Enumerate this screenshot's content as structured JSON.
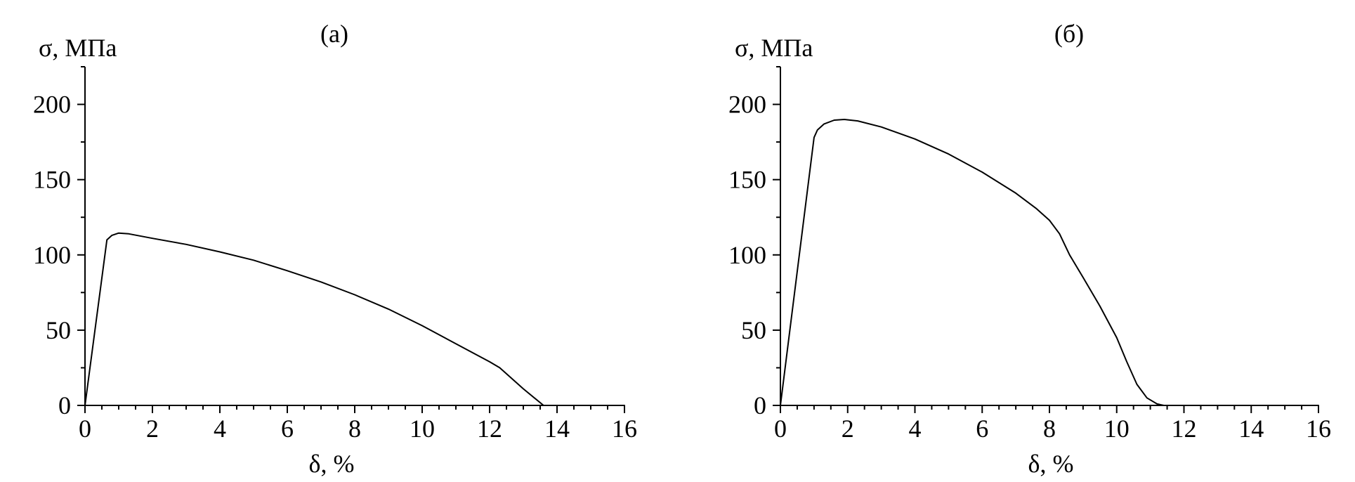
{
  "chart_data": [
    {
      "type": "line",
      "panel_label": "(a)",
      "xlabel": "δ, %",
      "ylabel": "σ, МПа",
      "xlim": [
        0,
        16
      ],
      "ylim": [
        0,
        225
      ],
      "xticks": [
        0,
        2,
        4,
        6,
        8,
        10,
        12,
        14,
        16
      ],
      "yticks": [
        0,
        50,
        100,
        150,
        200
      ],
      "grid": false,
      "series": [
        {
          "x": [
            0,
            0.65,
            0.8,
            1.0,
            1.3,
            2,
            3,
            4,
            5,
            6,
            7,
            8,
            9,
            10,
            11,
            12,
            12.3,
            13,
            13.6
          ],
          "y": [
            0,
            110,
            113,
            114.5,
            114,
            111,
            107,
            102,
            96.5,
            89.5,
            82,
            73.5,
            64,
            53,
            41,
            29,
            25,
            11,
            0
          ]
        }
      ]
    },
    {
      "type": "line",
      "panel_label": "(б)",
      "xlabel": "δ, %",
      "ylabel": "σ, МПа",
      "xlim": [
        0,
        16
      ],
      "ylim": [
        0,
        225
      ],
      "xticks": [
        0,
        2,
        4,
        6,
        8,
        10,
        12,
        14,
        16
      ],
      "yticks": [
        0,
        50,
        100,
        150,
        200
      ],
      "grid": false,
      "series": [
        {
          "x": [
            0,
            1.0,
            1.1,
            1.3,
            1.6,
            1.9,
            2.3,
            3,
            4,
            5,
            6,
            7,
            7.6,
            8,
            8.3,
            8.6,
            9,
            9.5,
            10,
            10.3,
            10.6,
            10.9,
            11.2,
            11.4
          ],
          "y": [
            0,
            178,
            183,
            187,
            189.5,
            190,
            189,
            185,
            177,
            167,
            155,
            141,
            131,
            123,
            114,
            100,
            85,
            66,
            45,
            29,
            14,
            5,
            1,
            0
          ]
        }
      ]
    }
  ]
}
